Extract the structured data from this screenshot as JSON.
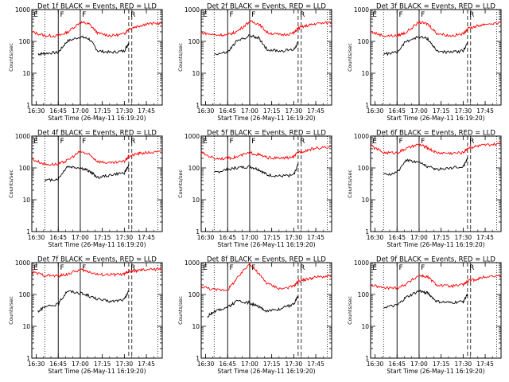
{
  "figure": {
    "background": "#ffffff",
    "axis_color": "#000000",
    "events_color": "#000000",
    "lld_color": "#ff0000"
  },
  "chart_data": [
    {
      "type": "line",
      "title": "Det 1f BLACK = Events, RED = LLD",
      "xlabel": "Start Time (26-May-11 16:19:20)",
      "ylabel": "Counts/sec",
      "yscale": "log",
      "ylim": [
        1,
        1000
      ],
      "ytick_labels": [
        "1",
        "10",
        "100",
        "1000"
      ],
      "xlim": [
        16.45,
        17.93
      ],
      "xtick_labels": [
        "16:30",
        "16:45",
        "17:00",
        "17:15",
        "17:30",
        "17:45"
      ],
      "markers": [
        "E",
        "F",
        "F",
        "R"
      ],
      "events": {
        "x": [
          16.52,
          16.6,
          16.75,
          16.85,
          17.0,
          17.1,
          17.2,
          17.35,
          17.5,
          17.55
        ],
        "y": [
          40,
          42,
          45,
          100,
          140,
          120,
          50,
          45,
          50,
          90
        ]
      },
      "lld": {
        "x": [
          16.45,
          16.6,
          16.75,
          16.85,
          17.0,
          17.1,
          17.2,
          17.35,
          17.5,
          17.55,
          17.65,
          17.75,
          17.93
        ],
        "y": [
          200,
          150,
          150,
          190,
          400,
          350,
          180,
          150,
          170,
          250,
          300,
          350,
          380
        ]
      }
    },
    {
      "type": "line",
      "title": "Det 2f BLACK = Events, RED = LLD",
      "xlabel": "Start Time (26-May-11 16:19:20)",
      "ylabel": "Counts/sec",
      "yscale": "log",
      "ylim": [
        1,
        1000
      ],
      "ytick_labels": [
        "1",
        "10",
        "100",
        "1000"
      ],
      "xlim": [
        16.45,
        17.93
      ],
      "xtick_labels": [
        "16:30",
        "16:45",
        "17:00",
        "17:15",
        "17:30",
        "17:45"
      ],
      "markers": [
        "E",
        "F",
        "F",
        "R"
      ],
      "events": {
        "x": [
          16.6,
          16.75,
          16.85,
          17.0,
          17.1,
          17.2,
          17.35,
          17.5,
          17.55
        ],
        "y": [
          40,
          45,
          100,
          150,
          130,
          55,
          50,
          55,
          95
        ]
      },
      "lld": {
        "x": [
          16.45,
          16.6,
          16.75,
          16.85,
          17.0,
          17.1,
          17.2,
          17.35,
          17.5,
          17.55,
          17.65,
          17.75,
          17.93
        ],
        "y": [
          190,
          160,
          160,
          200,
          420,
          360,
          190,
          160,
          180,
          260,
          310,
          360,
          390
        ]
      }
    },
    {
      "type": "line",
      "title": "Det 3f BLACK = Events, RED = LLD",
      "xlabel": "Start Time (26-May-11 16:19:20)",
      "ylabel": "Counts/sec",
      "yscale": "log",
      "ylim": [
        1,
        1000
      ],
      "ytick_labels": [
        "1",
        "10",
        "100",
        "1000"
      ],
      "xlim": [
        16.45,
        17.93
      ],
      "xtick_labels": [
        "16:30",
        "16:45",
        "17:00",
        "17:15",
        "17:30",
        "17:45"
      ],
      "markers": [
        "E",
        "F",
        "F",
        "R"
      ],
      "events": {
        "x": [
          16.6,
          16.75,
          16.85,
          17.0,
          17.1,
          17.2,
          17.35,
          17.5,
          17.55
        ],
        "y": [
          40,
          45,
          100,
          140,
          120,
          50,
          45,
          50,
          90
        ]
      },
      "lld": {
        "x": [
          16.45,
          16.6,
          16.75,
          16.85,
          17.0,
          17.1,
          17.2,
          17.35,
          17.5,
          17.55,
          17.65,
          17.75,
          17.93
        ],
        "y": [
          200,
          150,
          150,
          190,
          400,
          350,
          180,
          150,
          170,
          250,
          300,
          350,
          380
        ]
      }
    },
    {
      "type": "line",
      "title": "Det 4f BLACK = Events, RED = LLD",
      "xlabel": "Start Time (26-May-11 16:19:20)",
      "ylabel": "Counts/sec",
      "yscale": "log",
      "ylim": [
        1,
        1000
      ],
      "ytick_labels": [
        "1",
        "10",
        "100",
        "1000"
      ],
      "xlim": [
        16.45,
        17.93
      ],
      "xtick_labels": [
        "16:30",
        "16:45",
        "17:00",
        "17:15",
        "17:30",
        "17:45"
      ],
      "markers": [
        "E",
        "F",
        "F",
        "R"
      ],
      "events": {
        "x": [
          16.6,
          16.75,
          16.85,
          17.0,
          17.1,
          17.2,
          17.35,
          17.5,
          17.55
        ],
        "y": [
          40,
          45,
          110,
          100,
          80,
          50,
          60,
          70,
          120
        ]
      },
      "lld": {
        "x": [
          16.45,
          16.6,
          16.75,
          16.85,
          17.0,
          17.1,
          17.2,
          17.35,
          17.5,
          17.55,
          17.65,
          17.75,
          17.93
        ],
        "y": [
          190,
          130,
          130,
          170,
          330,
          260,
          160,
          140,
          160,
          230,
          280,
          300,
          320
        ]
      }
    },
    {
      "type": "line",
      "title": "Det 5f BLACK = Events, RED = LLD",
      "xlabel": "Start Time (26-May-11 16:19:20)",
      "ylabel": "Counts/sec",
      "yscale": "log",
      "ylim": [
        1,
        1000
      ],
      "ytick_labels": [
        "1",
        "10",
        "100",
        "1000"
      ],
      "xlim": [
        16.45,
        17.93
      ],
      "xtick_labels": [
        "16:30",
        "16:45",
        "17:00",
        "17:15",
        "17:30",
        "17:45"
      ],
      "markers": [
        "E",
        "F",
        "F",
        "R"
      ],
      "events": {
        "x": [
          16.6,
          16.75,
          16.85,
          17.0,
          17.1,
          17.2,
          17.35,
          17.5,
          17.55
        ],
        "y": [
          70,
          90,
          100,
          110,
          90,
          60,
          55,
          60,
          130
        ]
      },
      "lld": {
        "x": [
          16.45,
          16.6,
          16.75,
          16.85,
          17.0,
          17.1,
          17.2,
          17.35,
          17.5,
          17.55,
          17.65,
          17.75,
          17.93
        ],
        "y": [
          300,
          200,
          200,
          220,
          300,
          260,
          210,
          200,
          220,
          310,
          360,
          420,
          450
        ]
      }
    },
    {
      "type": "line",
      "title": "Det 6f BLACK = Events, RED = LLD",
      "xlabel": "Start Time (26-May-11 16:19:20)",
      "ylabel": "Counts/sec",
      "yscale": "log",
      "ylim": [
        1,
        1000
      ],
      "ytick_labels": [
        "1",
        "10",
        "100",
        "1000"
      ],
      "xlim": [
        16.45,
        17.93
      ],
      "xtick_labels": [
        "16:30",
        "16:45",
        "17:00",
        "17:15",
        "17:30",
        "17:45"
      ],
      "markers": [
        "E",
        "F",
        "F",
        "R"
      ],
      "events": {
        "x": [
          16.6,
          16.75,
          16.85,
          17.0,
          17.1,
          17.2,
          17.35,
          17.5,
          17.55
        ],
        "y": [
          60,
          70,
          180,
          150,
          110,
          90,
          100,
          110,
          200
        ]
      },
      "lld": {
        "x": [
          16.45,
          16.6,
          16.75,
          16.85,
          17.0,
          17.1,
          17.2,
          17.35,
          17.5,
          17.55,
          17.65,
          17.75,
          17.93
        ],
        "y": [
          500,
          300,
          300,
          400,
          550,
          420,
          300,
          290,
          300,
          420,
          480,
          520,
          560
        ]
      }
    },
    {
      "type": "line",
      "title": "Det 7f BLACK = Events, RED = LLD",
      "xlabel": "Start Time (26-May-11 16:19:20)",
      "ylabel": "Counts/sec",
      "yscale": "log",
      "ylim": [
        1,
        1000
      ],
      "ytick_labels": [
        "1",
        "10",
        "100",
        "1000"
      ],
      "xlim": [
        16.45,
        17.93
      ],
      "xtick_labels": [
        "16:30",
        "16:45",
        "17:00",
        "17:15",
        "17:30",
        "17:45"
      ],
      "markers": [
        "E",
        "F",
        "F",
        "R"
      ],
      "events": {
        "x": [
          16.52,
          16.6,
          16.75,
          16.85,
          17.0,
          17.1,
          17.2,
          17.35,
          17.5,
          17.55
        ],
        "y": [
          30,
          40,
          50,
          130,
          110,
          90,
          70,
          60,
          70,
          130
        ]
      },
      "lld": {
        "x": [
          16.45,
          16.6,
          16.75,
          16.85,
          17.0,
          17.1,
          17.2,
          17.35,
          17.5,
          17.55,
          17.65,
          17.75,
          17.93
        ],
        "y": [
          500,
          400,
          380,
          430,
          600,
          520,
          420,
          420,
          430,
          520,
          560,
          600,
          620
        ]
      }
    },
    {
      "type": "line",
      "title": "Det 8f BLACK = Events, RED = LLD",
      "xlabel": "Start Time (26-May-11 16:19:20)",
      "ylabel": "Counts/sec",
      "yscale": "log",
      "ylim": [
        1,
        1000
      ],
      "ytick_labels": [
        "1",
        "10",
        "100",
        "1000"
      ],
      "xlim": [
        16.45,
        17.93
      ],
      "xtick_labels": [
        "16:30",
        "16:45",
        "17:00",
        "17:15",
        "17:30",
        "17:45"
      ],
      "markers": [
        "E",
        "F",
        "F",
        "R"
      ],
      "events": {
        "x": [
          16.52,
          16.6,
          16.75,
          16.85,
          17.0,
          17.1,
          17.2,
          17.35,
          17.5,
          17.55
        ],
        "y": [
          20,
          30,
          40,
          60,
          55,
          40,
          30,
          35,
          50,
          90
        ]
      },
      "lld": {
        "x": [
          16.45,
          16.6,
          16.75,
          16.85,
          17.0,
          17.1,
          17.2,
          17.35,
          17.5,
          17.55,
          17.65,
          17.75,
          17.93
        ],
        "y": [
          180,
          140,
          140,
          300,
          950,
          450,
          220,
          150,
          180,
          260,
          300,
          350,
          380
        ]
      }
    },
    {
      "type": "line",
      "title": "Det 9f BLACK = Events, RED = LLD",
      "xlabel": "Start Time (26-May-11 16:19:20)",
      "ylabel": "Counts/sec",
      "yscale": "log",
      "ylim": [
        1,
        1000
      ],
      "ytick_labels": [
        "1",
        "10",
        "100",
        "1000"
      ],
      "xlim": [
        16.45,
        17.93
      ],
      "xtick_labels": [
        "16:30",
        "16:45",
        "17:00",
        "17:15",
        "17:30",
        "17:45"
      ],
      "markers": [
        "E",
        "F",
        "F",
        "R"
      ],
      "events": {
        "x": [
          16.6,
          16.75,
          16.85,
          17.0,
          17.1,
          17.2,
          17.35,
          17.5,
          17.55
        ],
        "y": [
          40,
          45,
          80,
          130,
          110,
          60,
          55,
          60,
          100
        ]
      },
      "lld": {
        "x": [
          16.45,
          16.6,
          16.75,
          16.85,
          17.0,
          17.1,
          17.2,
          17.35,
          17.5,
          17.55,
          17.65,
          17.75,
          17.93
        ],
        "y": [
          200,
          160,
          160,
          210,
          400,
          350,
          200,
          180,
          200,
          260,
          300,
          360,
          390
        ]
      }
    }
  ]
}
